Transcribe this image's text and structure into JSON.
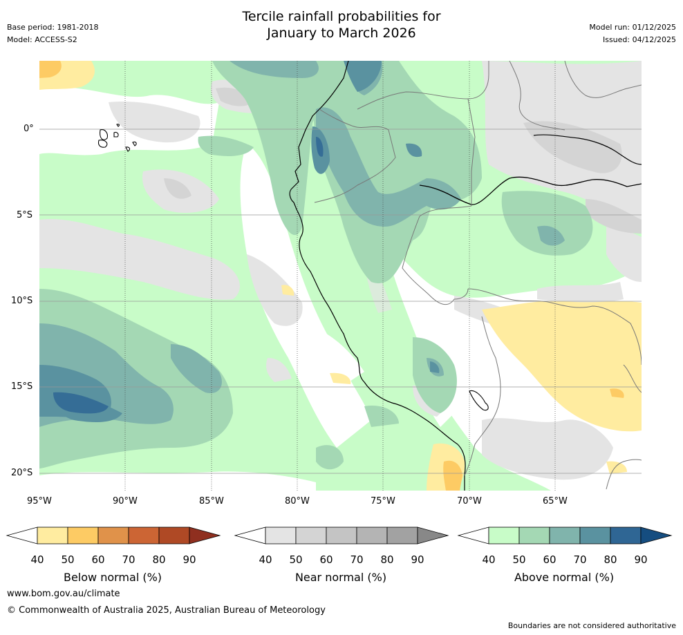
{
  "title": {
    "line1": "Tercile rainfall probabilities for",
    "line2": "January to March 2026"
  },
  "meta": {
    "base_period": "Base period: 1981-2018",
    "model": "Model: ACCESS-S2",
    "model_run": "Model run: 01/12/2025",
    "issued": "Issued: 04/12/2025"
  },
  "map": {
    "lat_labels": [
      "0°",
      "5°S",
      "10°S",
      "15°S",
      "20°S"
    ],
    "lon_labels": [
      "95°W",
      "90°W",
      "85°W",
      "80°W",
      "75°W",
      "70°W",
      "65°W"
    ]
  },
  "colorbars": [
    {
      "label": "Below normal (%)",
      "ticks": [
        "40",
        "50",
        "60",
        "70",
        "80",
        "90"
      ],
      "colors": [
        "#ffeca0",
        "#fdcb64",
        "#e0924a",
        "#cc6534",
        "#af4925",
        "#8f2f1f"
      ]
    },
    {
      "label": "Near normal (%)",
      "ticks": [
        "40",
        "50",
        "60",
        "70",
        "80",
        "90"
      ],
      "colors": [
        "#e4e4e4",
        "#d4d4d4",
        "#c4c4c4",
        "#b4b4b4",
        "#a2a2a2",
        "#888888"
      ]
    },
    {
      "label": "Above normal (%)",
      "ticks": [
        "40",
        "50",
        "60",
        "70",
        "80",
        "90"
      ],
      "colors": [
        "#c8fcc8",
        "#a4d8b4",
        "#80b4ac",
        "#5a92a0",
        "#2f6694",
        "#154d80"
      ]
    }
  ],
  "footer": {
    "website": "www.bom.gov.au/climate",
    "copyright": "© Commonwealth of Australia 2025, Australian Bureau of Meteorology",
    "disclaimer": "Boundaries are not considered authoritative"
  }
}
